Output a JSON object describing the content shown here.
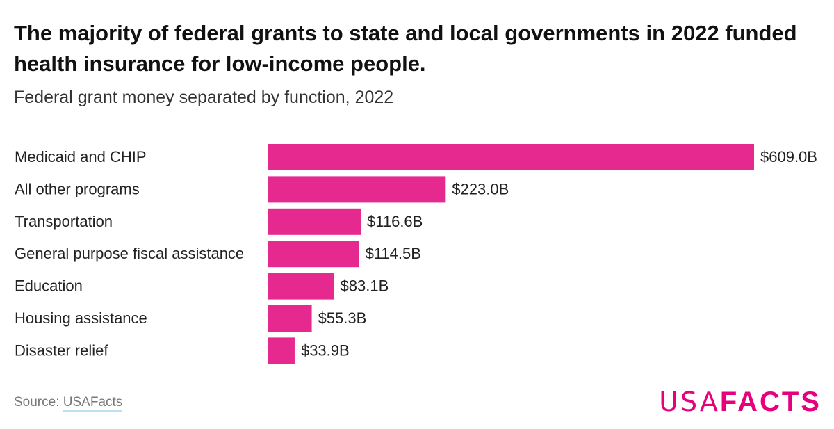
{
  "chart_data": {
    "type": "bar",
    "orientation": "horizontal",
    "title": "The majority of federal grants to state and local governments in 2022 funded health insurance for low-income people.",
    "subtitle": "Federal grant money separated by function, 2022",
    "categories": [
      "Medicaid and CHIP",
      "All other programs",
      "Transportation",
      "General purpose fiscal assistance",
      "Education",
      "Housing assistance",
      "Disaster relief"
    ],
    "values": [
      609.0,
      223.0,
      116.6,
      114.5,
      83.1,
      55.3,
      33.9
    ],
    "value_labels": [
      "$609.0B",
      "$223.0B",
      "$116.6B",
      "$114.5B",
      "$83.1B",
      "$55.3B",
      "$33.9B"
    ],
    "unit": "billion USD",
    "xlim": [
      0,
      609
    ],
    "grid": false,
    "bar_color": "#e5298f"
  },
  "footer": {
    "source_prefix": "Source: ",
    "source_link": "USAFacts",
    "logo_thin": "USA",
    "logo_bold": "FACTS",
    "logo_color": "#e6007e"
  }
}
